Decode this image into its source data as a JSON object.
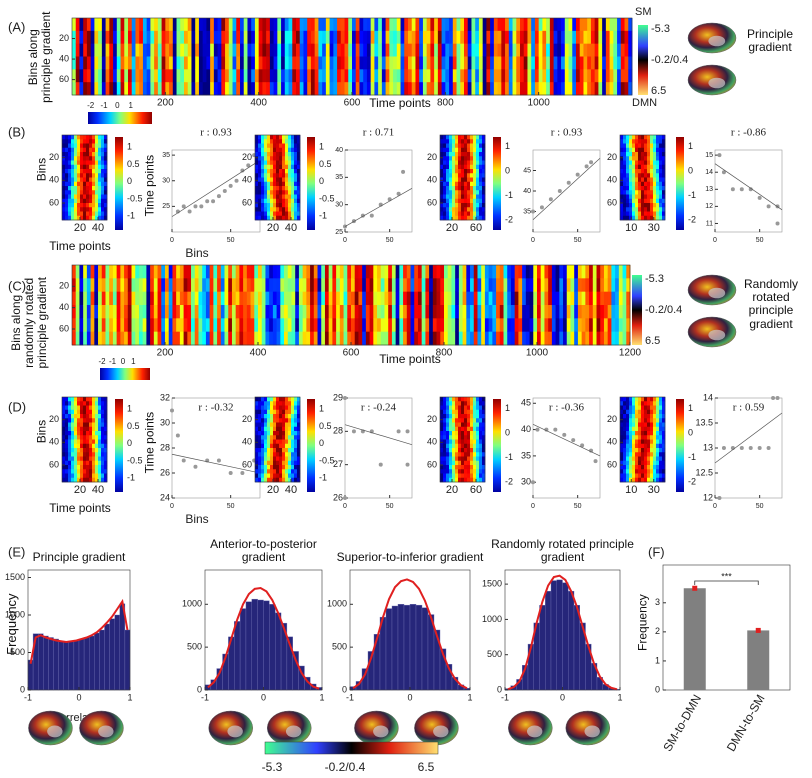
{
  "panel_labels": [
    "(A)",
    "(B)",
    "(C)",
    "(D)",
    "(E)",
    "(F)"
  ],
  "gradient_legends": [
    {
      "top": "SM",
      "labels": [
        "-5.3",
        "-0.2/0.4",
        "6.5"
      ],
      "bottom": "DMN",
      "caption": "Principle gradient"
    },
    {
      "labels": [
        "-5.3",
        "-0.2/0.4",
        "6.5"
      ],
      "caption": "Randomly rotated principle gradient"
    }
  ],
  "brain_colorbar": [
    "-5.3",
    "-0.2/0.4",
    "6.5"
  ],
  "chart_data": [
    {
      "type": "heatmap",
      "ylabel": "Bins along principle gradient",
      "xlabel": "Time points",
      "xlim": [
        0,
        1200
      ],
      "ylim": [
        0,
        75
      ],
      "xticks": [
        200,
        400,
        600,
        800,
        1000
      ],
      "yticks": [
        20,
        40,
        60
      ],
      "colorbar_lim": [
        -2.2,
        2.6
      ],
      "colorbar_ticks": [
        -2,
        -1,
        0,
        1
      ]
    },
    {
      "type": "heatmap",
      "ylabel": "Bins",
      "xlabel": "Time points",
      "xlim": [
        0,
        50
      ],
      "ylim": [
        0,
        75
      ],
      "xticks": [
        20,
        40
      ],
      "yticks": [
        20,
        40,
        60
      ],
      "colorbar_lim": [
        -1.4,
        1.3
      ],
      "colorbar_ticks": [
        1,
        0.5,
        0,
        -0.5,
        -1
      ]
    },
    {
      "type": "scatter",
      "annotation": "r : 0.93",
      "ylabel": "Time points",
      "xlabel": "Bins",
      "xlim": [
        0,
        75
      ],
      "ylim": [
        20,
        36
      ],
      "xticks": [
        0,
        50
      ],
      "yticks": [
        25,
        30,
        35
      ],
      "x": [
        5,
        10,
        15,
        20,
        25,
        30,
        35,
        40,
        45,
        50,
        55,
        60,
        65,
        70
      ],
      "y": [
        24,
        25,
        24,
        25,
        25,
        26,
        26,
        27,
        28,
        29,
        30,
        32,
        33,
        35
      ],
      "trend": {
        "x": [
          0,
          75
        ],
        "y": [
          23,
          34
        ]
      }
    },
    {
      "type": "heatmap",
      "xlim": [
        0,
        50
      ],
      "ylim": [
        0,
        75
      ],
      "xticks": [
        20,
        40
      ],
      "yticks": [
        20,
        40,
        60
      ],
      "colorbar_lim": [
        -1.4,
        1.3
      ],
      "colorbar_ticks": [
        1,
        0.5,
        0,
        -0.5,
        -1
      ]
    },
    {
      "type": "scatter",
      "annotation": "r : 0.71",
      "xlim": [
        0,
        75
      ],
      "ylim": [
        25,
        40
      ],
      "xticks": [
        0,
        50
      ],
      "yticks": [
        25,
        30,
        35,
        40
      ],
      "x": [
        0,
        10,
        20,
        30,
        40,
        50,
        60,
        65
      ],
      "y": [
        26,
        27,
        28,
        28,
        30,
        31,
        32,
        36
      ],
      "trend": {
        "x": [
          0,
          75
        ],
        "y": [
          26,
          33
        ]
      }
    },
    {
      "type": "heatmap",
      "xlim": [
        0,
        75
      ],
      "ylim": [
        0,
        75
      ],
      "xticks": [
        20,
        60
      ],
      "yticks": [
        20,
        40,
        60
      ],
      "colorbar_lim": [
        -2.4,
        1.4
      ],
      "colorbar_ticks": [
        1,
        0,
        -1,
        -2
      ]
    },
    {
      "type": "scatter",
      "annotation": "r : 0.93",
      "xlim": [
        0,
        75
      ],
      "ylim": [
        30,
        50
      ],
      "xticks": [
        0,
        50
      ],
      "yticks": [
        35,
        40,
        45
      ],
      "x": [
        0,
        10,
        20,
        30,
        40,
        50,
        60,
        65
      ],
      "y": [
        35,
        36,
        38,
        40,
        42,
        44,
        46,
        47
      ],
      "trend": {
        "x": [
          0,
          75
        ],
        "y": [
          33,
          48
        ]
      }
    },
    {
      "type": "heatmap",
      "xlim": [
        0,
        40
      ],
      "ylim": [
        0,
        75
      ],
      "xticks": [
        10,
        30
      ],
      "yticks": [
        20,
        40,
        60
      ],
      "colorbar_lim": [
        -2.4,
        1.4
      ],
      "colorbar_ticks": [
        1,
        0,
        -1,
        -2
      ]
    },
    {
      "type": "scatter",
      "annotation": "r : -0.86",
      "xlim": [
        0,
        75
      ],
      "ylim": [
        10.5,
        15.3
      ],
      "xticks": [
        0,
        50
      ],
      "yticks": [
        11,
        12,
        13,
        14,
        15
      ],
      "x": [
        5,
        10,
        20,
        30,
        40,
        50,
        60,
        70,
        70
      ],
      "y": [
        15,
        14,
        13,
        13,
        13,
        12.5,
        12,
        12,
        11
      ],
      "trend": {
        "x": [
          0,
          75
        ],
        "y": [
          14.5,
          11.8
        ]
      }
    },
    {
      "type": "heatmap",
      "ylabel": "Bins along randomly rotated principle gradient",
      "xlabel": "Time points",
      "xlim": [
        0,
        1200
      ],
      "ylim": [
        0,
        75
      ],
      "xticks": [
        200,
        400,
        600,
        800,
        1000,
        1200
      ],
      "yticks": [
        20,
        40,
        60
      ],
      "colorbar_lim": [
        -2.2,
        2.6
      ],
      "colorbar_ticks": [
        -2,
        -1,
        0,
        1
      ]
    },
    {
      "type": "heatmap",
      "ylabel": "Bins",
      "xlabel": "Time points",
      "xlim": [
        0,
        50
      ],
      "ylim": [
        0,
        75
      ],
      "xticks": [
        20,
        40
      ],
      "yticks": [
        20,
        40,
        60
      ],
      "colorbar_lim": [
        -1.4,
        1.3
      ],
      "colorbar_ticks": [
        1,
        0.5,
        0,
        -0.5,
        -1
      ]
    },
    {
      "type": "scatter",
      "annotation": "r : -0.32",
      "ylabel": "Time points",
      "xlabel": "Bins",
      "xlim": [
        0,
        75
      ],
      "ylim": [
        24,
        32
      ],
      "xticks": [
        0,
        50
      ],
      "yticks": [
        24,
        26,
        28,
        30,
        32
      ],
      "x": [
        0,
        5,
        10,
        20,
        30,
        40,
        50,
        60,
        70
      ],
      "y": [
        31,
        29,
        27,
        26.5,
        27,
        27,
        26,
        26,
        27
      ],
      "trend": {
        "x": [
          0,
          75
        ],
        "y": [
          27.5,
          26
        ]
      }
    },
    {
      "type": "heatmap",
      "xlim": [
        0,
        50
      ],
      "ylim": [
        0,
        75
      ],
      "xticks": [
        20,
        40
      ],
      "yticks": [
        20,
        40,
        60
      ],
      "colorbar_lim": [
        -1.4,
        1.3
      ],
      "colorbar_ticks": [
        1,
        0.5,
        0,
        -0.5,
        -1
      ]
    },
    {
      "type": "scatter",
      "annotation": "r : -0.24",
      "xlim": [
        0,
        75
      ],
      "ylim": [
        26,
        29
      ],
      "xticks": [
        0,
        50
      ],
      "yticks": [
        26,
        27,
        28,
        29
      ],
      "x": [
        0,
        0,
        10,
        20,
        30,
        40,
        60,
        70,
        70
      ],
      "y": [
        26,
        29,
        28,
        28,
        28,
        27,
        28,
        28,
        27
      ],
      "trend": {
        "x": [
          0,
          75
        ],
        "y": [
          28.2,
          27.6
        ]
      }
    },
    {
      "type": "heatmap",
      "xlim": [
        0,
        75
      ],
      "ylim": [
        0,
        75
      ],
      "xticks": [
        20,
        60
      ],
      "yticks": [
        20,
        40,
        60
      ],
      "colorbar_lim": [
        -2.4,
        1.4
      ],
      "colorbar_ticks": [
        1,
        0,
        -1,
        -2
      ]
    },
    {
      "type": "scatter",
      "annotation": "r : -0.36",
      "xlim": [
        0,
        75
      ],
      "ylim": [
        27,
        46
      ],
      "xticks": [
        0,
        50
      ],
      "yticks": [
        30,
        35,
        40,
        45
      ],
      "x": [
        0,
        5,
        15,
        25,
        35,
        45,
        55,
        65,
        70
      ],
      "y": [
        30,
        40,
        40,
        40,
        39,
        38,
        37,
        36,
        34
      ],
      "trend": {
        "x": [
          0,
          75
        ],
        "y": [
          41,
          35
        ]
      }
    },
    {
      "type": "heatmap",
      "xlim": [
        0,
        40
      ],
      "ylim": [
        0,
        75
      ],
      "xticks": [
        10,
        30
      ],
      "yticks": [
        20,
        40,
        60
      ],
      "colorbar_lim": [
        -2.4,
        1.4
      ],
      "colorbar_ticks": [
        1,
        0,
        -1,
        -2
      ]
    },
    {
      "type": "scatter",
      "annotation": "r : 0.59",
      "xlim": [
        0,
        75
      ],
      "ylim": [
        12,
        14
      ],
      "xticks": [
        0,
        50
      ],
      "yticks": [
        12,
        12.5,
        13,
        13.5,
        14
      ],
      "x": [
        5,
        10,
        20,
        30,
        40,
        50,
        60,
        65,
        70
      ],
      "y": [
        12,
        13,
        13,
        13,
        13,
        13,
        13,
        14,
        14
      ],
      "trend": {
        "x": [
          0,
          75
        ],
        "y": [
          12.7,
          13.7
        ]
      }
    },
    {
      "type": "histogram",
      "title": "Principle gradient",
      "ylabel": "Frequency",
      "xlabel": "Correlation",
      "xlim": [
        -1,
        1
      ],
      "ylim": [
        0,
        1600
      ],
      "xticks": [
        -1,
        0,
        1
      ],
      "yticks": [
        0,
        500,
        1000,
        1500
      ],
      "color": "#26267a",
      "fit_color": "#e02020",
      "bins": [
        -1,
        -0.9,
        -0.8,
        -0.7,
        -0.6,
        -0.5,
        -0.4,
        -0.3,
        -0.2,
        -0.1,
        0,
        0.1,
        0.2,
        0.3,
        0.4,
        0.5,
        0.6,
        0.7,
        0.8,
        0.9,
        1
      ],
      "values": [
        400,
        750,
        750,
        720,
        700,
        680,
        650,
        640,
        650,
        660,
        680,
        700,
        720,
        760,
        800,
        880,
        950,
        1000,
        1150,
        800
      ],
      "fit": [
        350,
        700,
        730,
        700,
        680,
        660,
        650,
        640,
        650,
        660,
        680,
        700,
        730,
        770,
        830,
        900,
        980,
        1080,
        1180,
        800
      ]
    },
    {
      "type": "histogram",
      "title": "Anterior-to-posterior gradient",
      "xlim": [
        -1,
        1
      ],
      "ylim": [
        0,
        1400
      ],
      "xticks": [
        -1,
        0,
        1
      ],
      "yticks": [
        0,
        500,
        1000
      ],
      "color": "#26267a",
      "fit_color": "#e02020",
      "bins": [
        -1,
        -0.9,
        -0.8,
        -0.7,
        -0.6,
        -0.5,
        -0.4,
        -0.3,
        -0.2,
        -0.1,
        0,
        0.1,
        0.2,
        0.3,
        0.4,
        0.5,
        0.6,
        0.7,
        0.8,
        0.9,
        1
      ],
      "values": [
        60,
        120,
        250,
        420,
        620,
        800,
        950,
        1030,
        1060,
        1050,
        1040,
        1000,
        900,
        780,
        620,
        450,
        280,
        150,
        70,
        30
      ],
      "fit": [
        30,
        90,
        200,
        380,
        600,
        820,
        1000,
        1120,
        1180,
        1190,
        1150,
        1050,
        900,
        720,
        530,
        350,
        200,
        100,
        40,
        15
      ]
    },
    {
      "type": "histogram",
      "title": "Superior-to-inferior gradient",
      "xlim": [
        -1,
        1
      ],
      "ylim": [
        0,
        1400
      ],
      "xticks": [
        -1,
        0,
        1
      ],
      "yticks": [
        0,
        500,
        1000
      ],
      "color": "#26267a",
      "fit_color": "#e02020",
      "bins": [
        -1,
        -0.9,
        -0.8,
        -0.7,
        -0.6,
        -0.5,
        -0.4,
        -0.3,
        -0.2,
        -0.1,
        0,
        0.1,
        0.2,
        0.3,
        0.4,
        0.5,
        0.6,
        0.7,
        0.8,
        0.9,
        1
      ],
      "values": [
        40,
        100,
        250,
        450,
        650,
        850,
        950,
        980,
        1000,
        990,
        1000,
        990,
        960,
        880,
        700,
        480,
        300,
        150,
        60,
        20
      ],
      "fit": [
        20,
        70,
        180,
        370,
        600,
        850,
        1060,
        1200,
        1270,
        1290,
        1260,
        1180,
        1040,
        850,
        630,
        420,
        250,
        130,
        55,
        20
      ]
    },
    {
      "type": "histogram",
      "title": "Randomly rotated principle gradient",
      "xlim": [
        -1,
        1
      ],
      "ylim": [
        0,
        1700
      ],
      "xticks": [
        -1,
        0,
        1
      ],
      "yticks": [
        0,
        500,
        1000,
        1500
      ],
      "color": "#26267a",
      "fit_color": "#e02020",
      "bins": [
        -1,
        -0.9,
        -0.8,
        -0.7,
        -0.6,
        -0.5,
        -0.4,
        -0.3,
        -0.2,
        -0.1,
        0,
        0.1,
        0.2,
        0.3,
        0.4,
        0.5,
        0.6,
        0.7,
        0.8,
        0.9,
        1
      ],
      "values": [
        20,
        60,
        150,
        350,
        650,
        950,
        1200,
        1400,
        1550,
        1560,
        1520,
        1400,
        1200,
        950,
        650,
        380,
        180,
        80,
        30,
        10
      ],
      "fit": [
        10,
        40,
        120,
        300,
        600,
        950,
        1250,
        1480,
        1600,
        1620,
        1560,
        1400,
        1180,
        900,
        620,
        370,
        190,
        80,
        30,
        10
      ]
    },
    {
      "type": "bar",
      "ylabel": "Frequency",
      "categories": [
        "SM-to-DMN",
        "DMN-to-SM"
      ],
      "values": [
        3.5,
        2.05
      ],
      "errors": [
        0.05,
        0.04
      ],
      "ylim": [
        0,
        4.3
      ],
      "yticks": [
        0,
        1,
        2,
        3
      ],
      "color": "#808080",
      "error_color": "#e02020",
      "annotation": "***"
    }
  ]
}
